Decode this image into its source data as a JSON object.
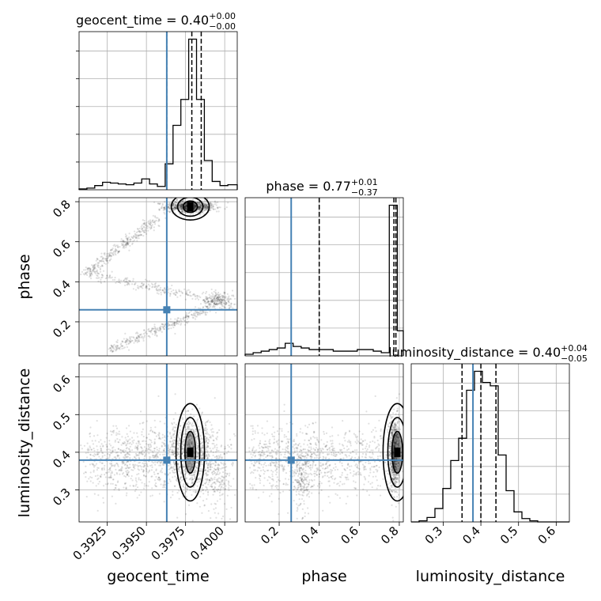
{
  "chart_data": {
    "type": "corner",
    "parameters": [
      "geocent_time",
      "phase",
      "luminosity_distance"
    ],
    "axis_labels": {
      "x": [
        "geocent_time",
        "phase",
        "luminosity_distance"
      ],
      "y": [
        "phase",
        "luminosity_distance"
      ]
    },
    "ranges": {
      "geocent_time": [
        0.3907,
        0.4008
      ],
      "phase": [
        0.03,
        0.82
      ],
      "luminosity_distance": [
        0.215,
        0.635
      ]
    },
    "ticks": {
      "geocent_time": [
        0.3925,
        0.395,
        0.3975,
        0.4
      ],
      "phase": [
        0.2,
        0.4,
        0.6,
        0.8
      ],
      "luminosity_distance": [
        0.3,
        0.4,
        0.5,
        0.6
      ]
    },
    "tick_labels": {
      "geocent_time": [
        "0.3925",
        "0.3950",
        "0.3975",
        "0.4000"
      ],
      "phase": [
        "0.2",
        "0.4",
        "0.6",
        "0.8"
      ],
      "luminosity_distance": [
        "0.3",
        "0.4",
        "0.5",
        "0.6"
      ]
    },
    "titles": [
      {
        "param": "geocent_time",
        "name": "geocent_time = 0.40",
        "plus": "+0.00",
        "minus": "−0.00"
      },
      {
        "param": "phase",
        "name": "phase = 0.77",
        "plus": "+0.01",
        "minus": "−0.37"
      },
      {
        "param": "luminosity_distance",
        "name": "luminosity_distance = 0.40",
        "plus": "+0.04",
        "minus": "−0.05"
      }
    ],
    "truths": {
      "geocent_time": 0.3963,
      "phase": 0.26,
      "luminosity_distance": 0.379
    },
    "quantiles": {
      "geocent_time": [
        0.3963,
        0.3979,
        0.3985
      ],
      "phase": [
        0.4,
        0.773,
        0.783
      ],
      "luminosity_distance": [
        0.35,
        0.4,
        0.44
      ]
    },
    "histograms": {
      "geocent_time": {
        "edges": [
          0.3907,
          0.3912,
          0.3917,
          0.3922,
          0.3927,
          0.3932,
          0.3937,
          0.3942,
          0.3947,
          0.3952,
          0.3957,
          0.3962,
          0.3967,
          0.3972,
          0.3977,
          0.3982,
          0.3987,
          0.3992,
          0.3997,
          0.4002,
          0.4008
        ],
        "counts": [
          1,
          2,
          5,
          9,
          8,
          7,
          6,
          8,
          13,
          7,
          4,
          31,
          77,
          108,
          180,
          108,
          35,
          10,
          5,
          6
        ]
      },
      "phase": {
        "edges": [
          0.03,
          0.07,
          0.11,
          0.15,
          0.19,
          0.23,
          0.27,
          0.31,
          0.35,
          0.39,
          0.43,
          0.47,
          0.51,
          0.55,
          0.59,
          0.63,
          0.67,
          0.71,
          0.75,
          0.79,
          0.82
        ],
        "counts": [
          1,
          2,
          3,
          4,
          5,
          8,
          6,
          5,
          4,
          4,
          4,
          3,
          3,
          3,
          4,
          4,
          3,
          2,
          96,
          16
        ]
      },
      "luminosity_distance": {
        "edges": [
          0.215,
          0.236,
          0.257,
          0.278,
          0.299,
          0.32,
          0.341,
          0.362,
          0.383,
          0.404,
          0.425,
          0.446,
          0.467,
          0.488,
          0.509,
          0.53,
          0.551,
          0.572,
          0.593,
          0.614,
          0.635
        ],
        "counts": [
          0,
          1,
          4,
          12,
          30,
          55,
          75,
          118,
          135,
          125,
          122,
          60,
          28,
          9,
          3,
          1,
          0,
          0,
          0,
          0
        ]
      }
    },
    "grid": true,
    "truth_color": "#4682b4"
  }
}
